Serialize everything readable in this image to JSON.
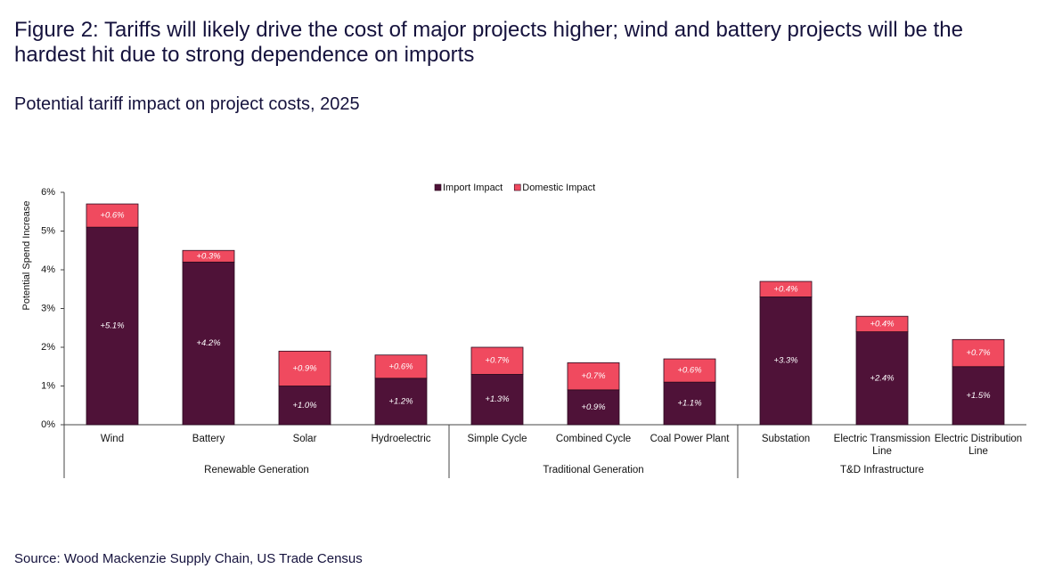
{
  "chart_data": {
    "type": "stacked_bar",
    "title": "Figure 2: Tariffs will likely drive the cost of major projects higher; wind and battery projects will be the hardest hit due to strong dependence on imports",
    "subtitle": "Potential tariff impact on project costs, 2025",
    "y_label": "Potential Spend Increase",
    "source": "Source: Wood Mackenzie Supply Chain, US Trade Census",
    "groups": [
      {
        "name": "Renewable Generation",
        "categories": [
          "Wind",
          "Battery",
          "Solar",
          "Hydroelectric"
        ]
      },
      {
        "name": "Traditional Generation",
        "categories": [
          "Simple Cycle",
          "Combined Cycle",
          "Coal Power Plant"
        ]
      },
      {
        "name": "T&D Infrastructure",
        "categories": [
          "Substation",
          "Electric Transmission Line",
          "Electric Distribution Line"
        ]
      }
    ],
    "series": [
      {
        "name": "Import Impact",
        "color": "#4f1238",
        "values": [
          5.1,
          4.2,
          1.0,
          1.2,
          1.3,
          0.9,
          1.1,
          3.3,
          2.4,
          1.5
        ],
        "value_labels": [
          "+5.1%",
          "+4.2%",
          "+1.0%",
          "+1.2%",
          "+1.3%",
          "+0.9%",
          "+1.1%",
          "+3.3%",
          "+2.4%",
          "+1.5%"
        ]
      },
      {
        "name": "Domestic Impact",
        "color": "#f04a5f",
        "values": [
          0.6,
          0.3,
          0.9,
          0.6,
          0.7,
          0.7,
          0.6,
          0.4,
          0.4,
          0.7
        ],
        "value_labels": [
          "+0.6%",
          "+0.3%",
          "+0.9%",
          "+0.6%",
          "+0.7%",
          "+0.7%",
          "+0.6%",
          "+0.4%",
          "+0.4%",
          "+0.7%"
        ]
      }
    ],
    "ylim": [
      0,
      6
    ],
    "yticks": [
      {
        "value": 0,
        "label": "0%"
      },
      {
        "value": 1,
        "label": "1%"
      },
      {
        "value": 2,
        "label": "2%"
      },
      {
        "value": 3,
        "label": "3%"
      },
      {
        "value": 4,
        "label": "4%"
      },
      {
        "value": 5,
        "label": "5%"
      },
      {
        "value": 6,
        "label": "6%"
      }
    ],
    "legend": "top"
  }
}
